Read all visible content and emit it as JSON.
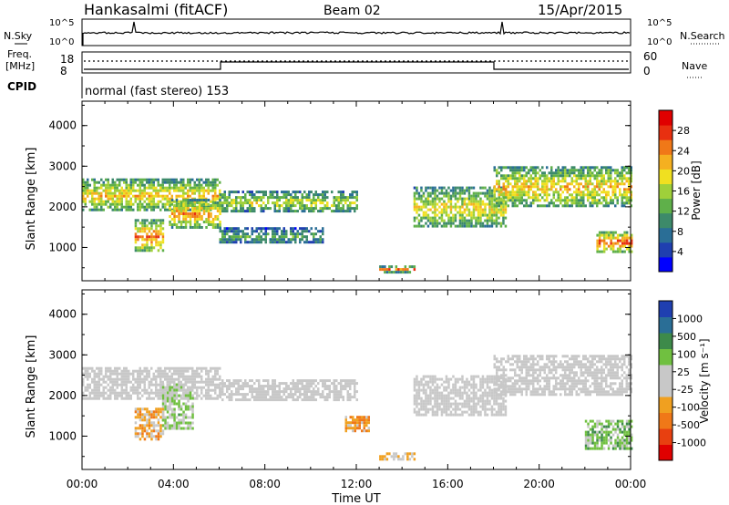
{
  "header": {
    "station": "Hankasalmi (fitACF)",
    "beam": "Beam 02",
    "date": "15/Apr/2015"
  },
  "status_panel": {
    "nsky_label": "N.Sky",
    "nsky_ticks": [
      "10^5",
      "10^0"
    ],
    "nsearch_label": "N.Search",
    "nsearch_ticks": [
      "10^5",
      "10^0"
    ],
    "freq_label_line1": "Freq.",
    "freq_label_line2": "[MHz]",
    "freq_ticks": [
      "18",
      "8"
    ],
    "nave_label": "Nave",
    "nave_ticks": [
      "60",
      "0"
    ],
    "cpid_label": "CPID",
    "cpid_text": "normal (fast stereo) 153"
  },
  "colors": {
    "power_scale": [
      "#0000ff",
      "#1f3fb0",
      "#2a6e96",
      "#3d8a6a",
      "#5fb04a",
      "#9fd03a",
      "#f0e020",
      "#f5b020",
      "#f07818",
      "#e83010",
      "#e00000"
    ],
    "velocity_scale": [
      "#1f3fb0",
      "#2a6e96",
      "#3d8a4a",
      "#70c040",
      "#c8c8c8",
      "#c8c8c8",
      "#f0a020",
      "#f07818",
      "#e84010",
      "#e00000"
    ],
    "ground_scatter": "#c8c8c8"
  },
  "chart_data": [
    {
      "type": "heatmap",
      "quantity": "Power",
      "ylabel": "Slant Range [km]",
      "yticks": [
        "4000",
        "3000",
        "2000",
        "1000"
      ],
      "ylim": [
        180,
        4600
      ],
      "xlim": [
        "00:00",
        "24:00"
      ],
      "colorbar": {
        "label": "Power [dB]",
        "ticks": [
          "28",
          "24",
          "20",
          "16",
          "12",
          "8",
          "4"
        ],
        "range": [
          0,
          32
        ]
      },
      "bands": [
        {
          "t_start": 0.0,
          "t_end": 6.0,
          "range_start": 1900,
          "range_end": 2700,
          "level": 22
        },
        {
          "t_start": 2.3,
          "t_end": 3.5,
          "range_start": 900,
          "range_end": 1700,
          "level": 26
        },
        {
          "t_start": 3.8,
          "t_end": 6.0,
          "range_start": 1500,
          "range_end": 2200,
          "level": 24
        },
        {
          "t_start": 6.0,
          "t_end": 12.0,
          "range_start": 1900,
          "range_end": 2400,
          "level": 18
        },
        {
          "t_start": 6.0,
          "t_end": 10.5,
          "range_start": 1100,
          "range_end": 1500,
          "level": 12
        },
        {
          "t_start": 13.0,
          "t_end": 14.5,
          "range_start": 420,
          "range_end": 560,
          "level": 26
        },
        {
          "t_start": 14.5,
          "t_end": 18.5,
          "range_start": 1500,
          "range_end": 2500,
          "level": 20
        },
        {
          "t_start": 18.0,
          "t_end": 24.0,
          "range_start": 2000,
          "range_end": 3000,
          "level": 22
        },
        {
          "t_start": 22.5,
          "t_end": 24.0,
          "range_start": 900,
          "range_end": 1400,
          "level": 28
        }
      ]
    },
    {
      "type": "heatmap",
      "quantity": "Velocity",
      "ylabel": "Slant Range [km]",
      "yticks": [
        "4000",
        "3000",
        "2000",
        "1000"
      ],
      "ylim": [
        180,
        4600
      ],
      "xlabel": "Time UT",
      "xticks": [
        "00:00",
        "04:00",
        "08:00",
        "12:00",
        "16:00",
        "20:00",
        "00:00"
      ],
      "xlim": [
        "00:00",
        "24:00"
      ],
      "colorbar": {
        "label": "Velocity [m s⁻¹]",
        "ticks": [
          "1000",
          "500",
          "100",
          "25",
          "-25",
          "-100",
          "-500",
          "-1000"
        ],
        "range": [
          -1000,
          1000
        ]
      },
      "bands": [
        {
          "t_start": 0.0,
          "t_end": 6.0,
          "range_start": 1900,
          "range_end": 2700,
          "value": 0
        },
        {
          "t_start": 2.3,
          "t_end": 3.5,
          "range_start": 900,
          "range_end": 1700,
          "value": -300
        },
        {
          "t_start": 3.5,
          "t_end": 4.8,
          "range_start": 1200,
          "range_end": 2300,
          "value": 200
        },
        {
          "t_start": 6.0,
          "t_end": 12.0,
          "range_start": 1900,
          "range_end": 2400,
          "value": 0
        },
        {
          "t_start": 11.5,
          "t_end": 12.5,
          "range_start": 1100,
          "range_end": 1500,
          "value": -400
        },
        {
          "t_start": 13.0,
          "t_end": 14.5,
          "range_start": 400,
          "range_end": 600,
          "value": -200
        },
        {
          "t_start": 14.5,
          "t_end": 18.5,
          "range_start": 1500,
          "range_end": 2500,
          "value": 0
        },
        {
          "t_start": 18.0,
          "t_end": 24.0,
          "range_start": 2000,
          "range_end": 3000,
          "value": 0
        },
        {
          "t_start": 22.0,
          "t_end": 24.0,
          "range_start": 700,
          "range_end": 1400,
          "value": 300
        }
      ]
    }
  ]
}
